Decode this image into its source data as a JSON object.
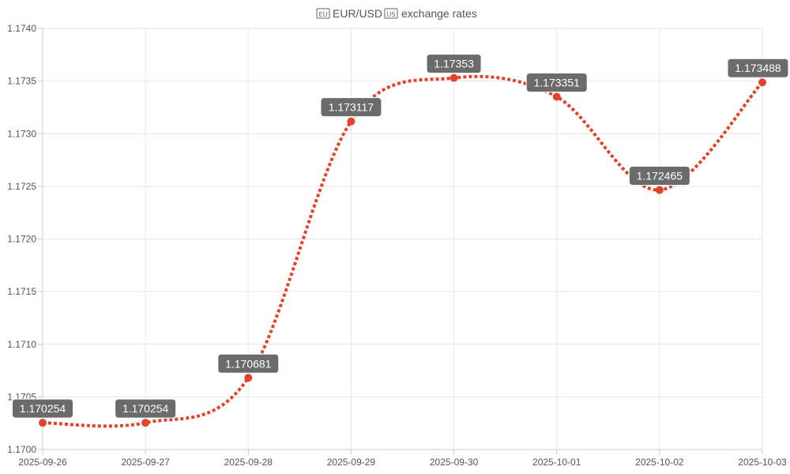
{
  "chart_data": {
    "type": "line",
    "title": "🇪🇺 EUR/USD 🇺🇸 exchange rates",
    "title_parts": {
      "flag_left": "EU",
      "text": "EUR/USD",
      "flag_right": "US",
      "suffix": "exchange rates"
    },
    "categories": [
      "2025-09-26",
      "2025-09-27",
      "2025-09-28",
      "2025-09-29",
      "2025-09-30",
      "2025-10-01",
      "2025-10-02",
      "2025-10-03"
    ],
    "values": [
      1.170254,
      1.170254,
      1.170681,
      1.173117,
      1.17353,
      1.173351,
      1.172465,
      1.173488
    ],
    "data_labels": [
      "1.170254",
      "1.170254",
      "1.170681",
      "1.173117",
      "1.17353",
      "1.173351",
      "1.172465",
      "1.173488"
    ],
    "ylim": [
      1.17,
      1.174
    ],
    "yticks": [
      "1.1700",
      "1.1705",
      "1.1710",
      "1.1715",
      "1.1720",
      "1.1725",
      "1.1730",
      "1.1735",
      "1.1740"
    ],
    "ytick_values": [
      1.17,
      1.1705,
      1.171,
      1.1715,
      1.172,
      1.1725,
      1.173,
      1.1735,
      1.174
    ],
    "grid": true,
    "legend": "none",
    "colors": {
      "line": "#e2432a",
      "point": "#e2432a",
      "label_bg": "#6b6b6b",
      "label_border": "#ffffff",
      "grid": "#e6e6e6",
      "axis": "#cccccc",
      "text": "#555555"
    }
  }
}
